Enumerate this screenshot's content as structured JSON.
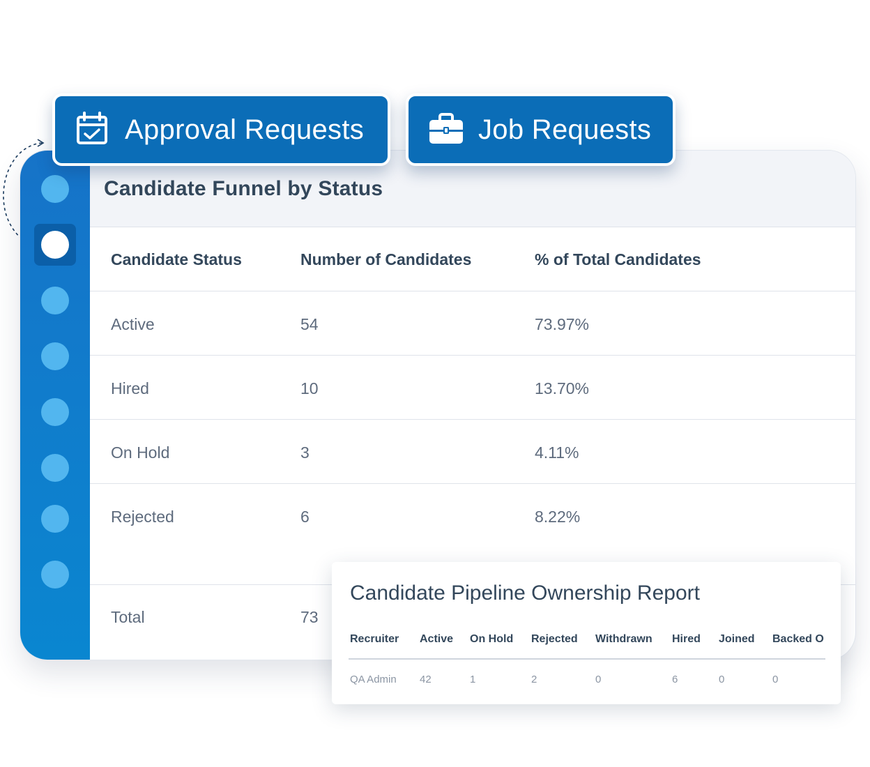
{
  "tabs": {
    "approval": {
      "label": "Approval Requests",
      "icon": "calendar-check-icon"
    },
    "job": {
      "label": "Job Requests",
      "icon": "briefcase-icon"
    }
  },
  "funnel": {
    "title": "Candidate Funnel by Status",
    "headers": [
      "Candidate Status",
      "Number of Candidates",
      "% of Total Candidates"
    ],
    "rows": [
      {
        "status": "Active",
        "count": "54",
        "percent": "73.97%"
      },
      {
        "status": "Hired",
        "count": "10",
        "percent": "13.70%"
      },
      {
        "status": "On Hold",
        "count": "3",
        "percent": "4.11%"
      },
      {
        "status": "Rejected",
        "count": "6",
        "percent": "8.22%"
      }
    ],
    "total": {
      "label": "Total",
      "count": "73"
    }
  },
  "pipeline": {
    "title": "Candidate Pipeline Ownership Report",
    "headers": [
      "Recruiter",
      "Active",
      "On Hold",
      "Rejected",
      "Withdrawn",
      "Hired",
      "Joined",
      "Backed O"
    ],
    "row": [
      "QA Admin",
      "42",
      "1",
      "2",
      "0",
      "6",
      "0",
      "0"
    ]
  },
  "colors": {
    "brand_blue": "#0b6db7",
    "sidebar_blue": "#1673c8",
    "nav_dot": "#52b6ef",
    "text_dark": "#33475b",
    "text_muted": "#5e6b7d"
  }
}
